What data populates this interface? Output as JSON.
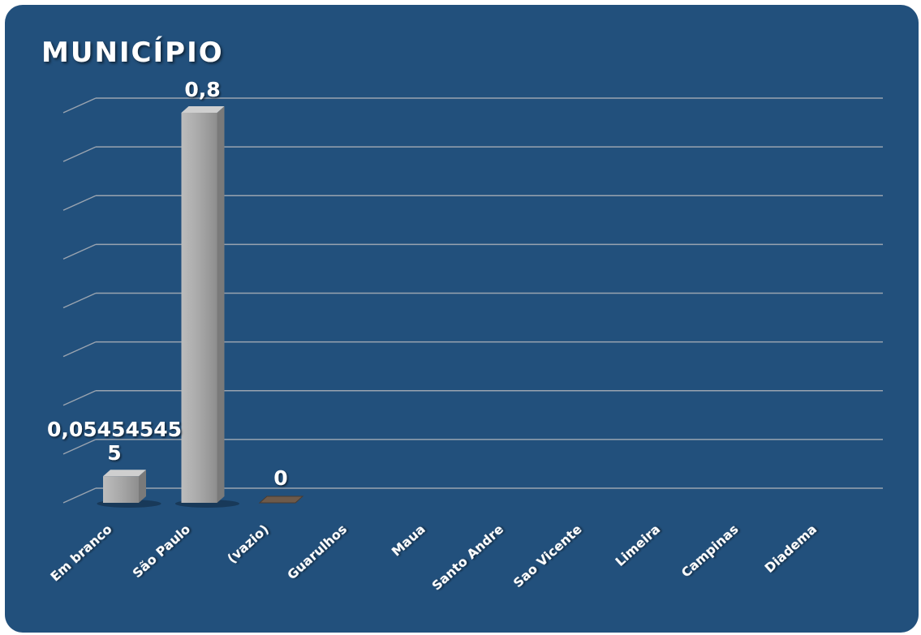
{
  "chart_data": {
    "type": "bar",
    "title": "MUNICÍPIO",
    "categories": [
      "Em branco",
      "São Paulo",
      "(vazio)",
      "Guarulhos",
      "Maua",
      "Santo Andre",
      "Sao Vicente",
      "Limeira",
      "Campinas",
      "Diadema"
    ],
    "values": [
      0.054545455,
      0.8,
      0,
      null,
      null,
      null,
      null,
      null,
      null,
      null
    ],
    "data_labels": [
      "0,05454545\n5",
      "0,8",
      "0",
      "",
      "",
      "",
      "",
      "",
      "",
      ""
    ],
    "ylim": [
      0,
      0.8
    ],
    "ygrid_count": 8,
    "grid": true,
    "legend": "none",
    "colors": {
      "background": "#22507c",
      "bar": "#a9a9a9",
      "gridline": "#9aa4b0",
      "text": "#ffffff"
    }
  }
}
